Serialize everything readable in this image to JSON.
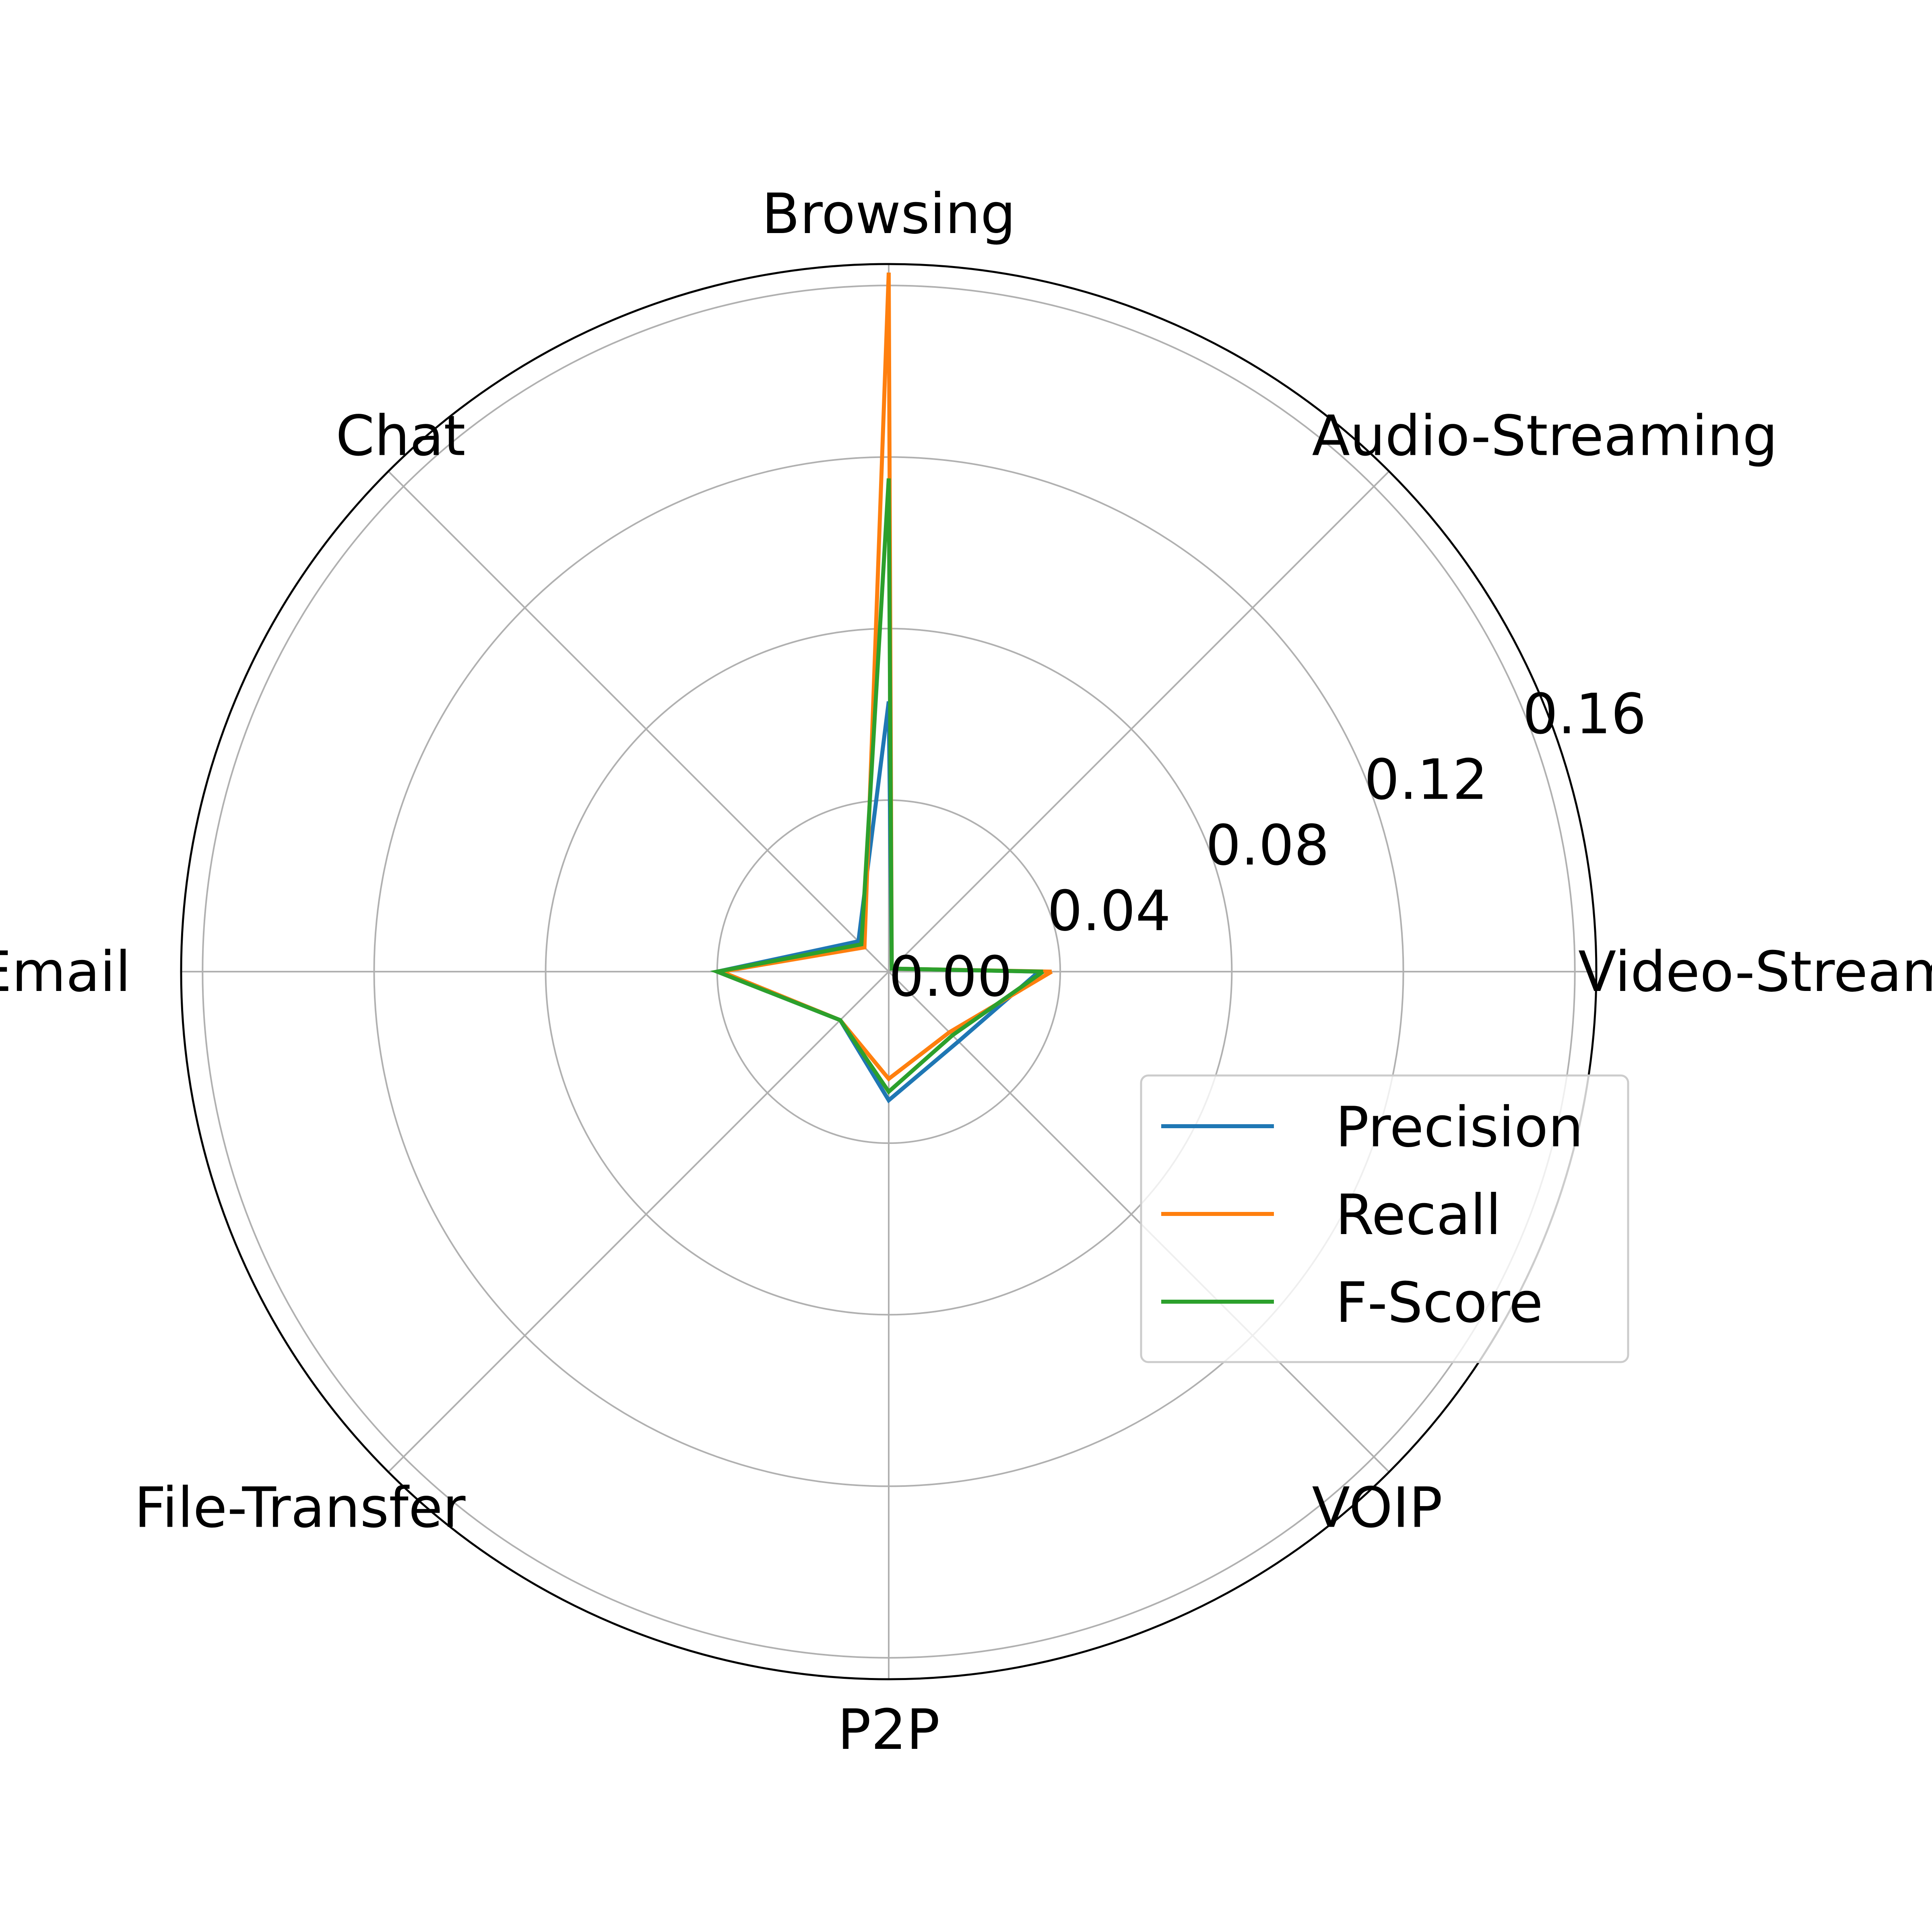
{
  "chart_data": {
    "type": "radar",
    "title": "",
    "categories": [
      "Video-Streaming",
      "Audio-Streaming",
      "Browsing",
      "Chat",
      "Email",
      "File-Transfer",
      "P2P",
      "VOIP"
    ],
    "rlim": [
      0,
      0.165
    ],
    "r_ticks": [
      0.0,
      0.04,
      0.08,
      0.12,
      0.16
    ],
    "r_tick_labels": [
      "0.00",
      "0.04",
      "0.08",
      "0.12",
      "0.16"
    ],
    "grid": true,
    "legend_position": "lower-right",
    "series": [
      {
        "name": "Precision",
        "color": "#1f77b4",
        "values": [
          0.035,
          0.001,
          0.063,
          0.01,
          0.04,
          0.016,
          0.03,
          0.023
        ]
      },
      {
        "name": "Recall",
        "color": "#ff7f0e",
        "values": [
          0.038,
          0.001,
          0.163,
          0.008,
          0.039,
          0.016,
          0.025,
          0.02
        ]
      },
      {
        "name": "F-Score",
        "color": "#2ca02c",
        "values": [
          0.036,
          0.001,
          0.115,
          0.009,
          0.04,
          0.016,
          0.028,
          0.021
        ]
      }
    ]
  }
}
